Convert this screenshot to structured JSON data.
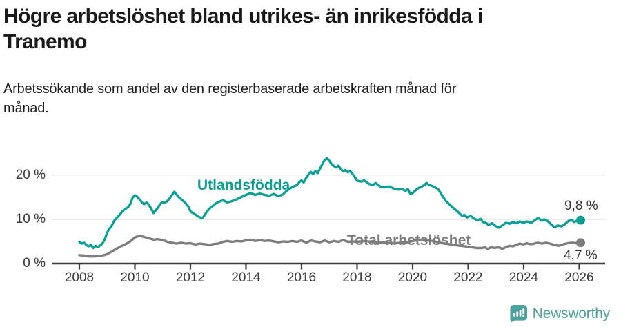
{
  "header": {
    "title_lines": [
      "Högre arbetslöshet bland utrikes- än inrikesfödda i",
      "Tranemo"
    ],
    "subtitle_lines": [
      "Arbetssökande som andel av den registerbaserade arbetskraften månad för",
      "månad."
    ]
  },
  "branding": {
    "name": "Newsworthy",
    "icon": "newsworthy-chart-bubble-icon",
    "color": "#4da19c"
  },
  "chart_data": {
    "type": "line",
    "title": "Högre arbetslöshet bland utrikes- än inrikesfödda i Tranemo",
    "subtitle": "Arbetssökande som andel av den registerbaserade arbetskraften månad för månad.",
    "unit": "%",
    "grid": true,
    "legend_position": "inline-labels",
    "x_axis": {
      "tick_values": [
        2008,
        2010,
        2012,
        2014,
        2016,
        2018,
        2020,
        2022,
        2024,
        2026
      ],
      "tick_labels": [
        "2008",
        "2010",
        "2012",
        "2014",
        "2016",
        "2018",
        "2020",
        "2022",
        "2024",
        "2026"
      ],
      "range": [
        2007.0,
        2026.95
      ]
    },
    "y_axis": {
      "tick_values": [
        0,
        10,
        20
      ],
      "tick_labels": [
        "0 %",
        "10 %",
        "20 %"
      ],
      "range": [
        0,
        26.5
      ]
    },
    "series": [
      {
        "name": "Utlandsfödda",
        "color": "#0ba095",
        "end_label": "9,8 %",
        "end_value": 9.8,
        "points": [
          [
            2008.0,
            4.9
          ],
          [
            2008.08,
            4.5
          ],
          [
            2008.17,
            4.7
          ],
          [
            2008.25,
            4.2
          ],
          [
            2008.33,
            3.9
          ],
          [
            2008.42,
            4.2
          ],
          [
            2008.5,
            3.5
          ],
          [
            2008.58,
            4.0
          ],
          [
            2008.67,
            3.7
          ],
          [
            2008.75,
            4.1
          ],
          [
            2008.83,
            4.5
          ],
          [
            2008.92,
            5.5
          ],
          [
            2009.0,
            7.0
          ],
          [
            2009.08,
            7.8
          ],
          [
            2009.17,
            8.6
          ],
          [
            2009.25,
            9.6
          ],
          [
            2009.33,
            10.2
          ],
          [
            2009.42,
            10.8
          ],
          [
            2009.5,
            11.4
          ],
          [
            2009.58,
            12.0
          ],
          [
            2009.67,
            12.4
          ],
          [
            2009.75,
            12.7
          ],
          [
            2009.83,
            13.4
          ],
          [
            2009.92,
            14.9
          ],
          [
            2010.0,
            15.4
          ],
          [
            2010.08,
            15.1
          ],
          [
            2010.17,
            14.5
          ],
          [
            2010.25,
            13.8
          ],
          [
            2010.33,
            13.4
          ],
          [
            2010.42,
            13.8
          ],
          [
            2010.5,
            13.3
          ],
          [
            2010.58,
            12.5
          ],
          [
            2010.67,
            11.4
          ],
          [
            2010.75,
            12.0
          ],
          [
            2010.83,
            12.6
          ],
          [
            2010.92,
            13.5
          ],
          [
            2011.0,
            13.9
          ],
          [
            2011.08,
            13.7
          ],
          [
            2011.17,
            14.1
          ],
          [
            2011.25,
            14.7
          ],
          [
            2011.33,
            15.4
          ],
          [
            2011.42,
            16.2
          ],
          [
            2011.5,
            15.6
          ],
          [
            2011.58,
            15.0
          ],
          [
            2011.67,
            14.5
          ],
          [
            2011.75,
            14.1
          ],
          [
            2011.83,
            13.6
          ],
          [
            2011.92,
            12.9
          ],
          [
            2012.0,
            11.8
          ],
          [
            2012.08,
            11.4
          ],
          [
            2012.17,
            11.1
          ],
          [
            2012.25,
            10.7
          ],
          [
            2012.42,
            10.2
          ],
          [
            2012.5,
            10.8
          ],
          [
            2012.58,
            11.6
          ],
          [
            2012.67,
            12.3
          ],
          [
            2012.75,
            12.8
          ],
          [
            2012.83,
            13.1
          ],
          [
            2012.92,
            13.6
          ],
          [
            2013.0,
            13.9
          ],
          [
            2013.17,
            14.3
          ],
          [
            2013.33,
            13.8
          ],
          [
            2013.5,
            14.1
          ],
          [
            2013.67,
            14.5
          ],
          [
            2013.83,
            15.0
          ],
          [
            2014.0,
            15.5
          ],
          [
            2014.17,
            15.9
          ],
          [
            2014.33,
            15.5
          ],
          [
            2014.5,
            15.8
          ],
          [
            2014.67,
            15.5
          ],
          [
            2014.83,
            15.3
          ],
          [
            2015.0,
            15.7
          ],
          [
            2015.17,
            15.2
          ],
          [
            2015.33,
            15.6
          ],
          [
            2015.5,
            16.6
          ],
          [
            2015.67,
            17.3
          ],
          [
            2015.83,
            17.7
          ],
          [
            2015.92,
            18.4
          ],
          [
            2016.0,
            18.8
          ],
          [
            2016.08,
            18.3
          ],
          [
            2016.17,
            19.4
          ],
          [
            2016.25,
            20.1
          ],
          [
            2016.33,
            20.7
          ],
          [
            2016.42,
            20.2
          ],
          [
            2016.5,
            20.9
          ],
          [
            2016.58,
            20.4
          ],
          [
            2016.67,
            21.5
          ],
          [
            2016.75,
            22.5
          ],
          [
            2016.83,
            23.3
          ],
          [
            2016.92,
            23.8
          ],
          [
            2017.0,
            23.2
          ],
          [
            2017.08,
            22.5
          ],
          [
            2017.17,
            22.0
          ],
          [
            2017.25,
            21.7
          ],
          [
            2017.33,
            22.1
          ],
          [
            2017.42,
            21.3
          ],
          [
            2017.5,
            20.8
          ],
          [
            2017.58,
            21.1
          ],
          [
            2017.67,
            20.6
          ],
          [
            2017.75,
            20.9
          ],
          [
            2017.83,
            20.3
          ],
          [
            2017.92,
            19.5
          ],
          [
            2018.0,
            18.7
          ],
          [
            2018.17,
            18.5
          ],
          [
            2018.25,
            18.8
          ],
          [
            2018.42,
            18.0
          ],
          [
            2018.58,
            17.7
          ],
          [
            2018.67,
            18.2
          ],
          [
            2018.83,
            17.4
          ],
          [
            2019.0,
            17.2
          ],
          [
            2019.17,
            17.4
          ],
          [
            2019.33,
            16.9
          ],
          [
            2019.5,
            16.7
          ],
          [
            2019.58,
            16.9
          ],
          [
            2019.75,
            16.4
          ],
          [
            2019.83,
            16.8
          ],
          [
            2019.92,
            15.7
          ],
          [
            2020.0,
            15.9
          ],
          [
            2020.17,
            16.9
          ],
          [
            2020.33,
            17.4
          ],
          [
            2020.42,
            17.7
          ],
          [
            2020.5,
            18.2
          ],
          [
            2020.58,
            17.8
          ],
          [
            2020.75,
            17.4
          ],
          [
            2020.92,
            16.8
          ],
          [
            2021.0,
            16.0
          ],
          [
            2021.1,
            15.0
          ],
          [
            2021.2,
            14.1
          ],
          [
            2021.42,
            12.8
          ],
          [
            2021.66,
            11.5
          ],
          [
            2021.79,
            10.7
          ],
          [
            2021.86,
            11.0
          ],
          [
            2021.96,
            10.4
          ],
          [
            2022.08,
            10.8
          ],
          [
            2022.2,
            10.2
          ],
          [
            2022.33,
            9.8
          ],
          [
            2022.45,
            10.1
          ],
          [
            2022.53,
            9.4
          ],
          [
            2022.66,
            9.1
          ],
          [
            2022.73,
            8.7
          ],
          [
            2022.86,
            9.1
          ],
          [
            2022.98,
            8.5
          ],
          [
            2023.11,
            8.1
          ],
          [
            2023.23,
            8.6
          ],
          [
            2023.36,
            9.2
          ],
          [
            2023.49,
            9.0
          ],
          [
            2023.61,
            9.4
          ],
          [
            2023.74,
            9.1
          ],
          [
            2023.86,
            9.5
          ],
          [
            2023.99,
            9.2
          ],
          [
            2024.11,
            9.5
          ],
          [
            2024.27,
            9.2
          ],
          [
            2024.4,
            9.8
          ],
          [
            2024.52,
            10.3
          ],
          [
            2024.65,
            9.7
          ],
          [
            2024.73,
            10.0
          ],
          [
            2024.86,
            9.6
          ],
          [
            2024.98,
            8.9
          ],
          [
            2025.11,
            8.2
          ],
          [
            2025.23,
            8.6
          ],
          [
            2025.36,
            8.4
          ],
          [
            2025.48,
            8.9
          ],
          [
            2025.61,
            9.6
          ],
          [
            2025.73,
            9.8
          ],
          [
            2025.81,
            9.4
          ],
          [
            2025.94,
            9.7
          ],
          [
            2026.05,
            9.8
          ]
        ]
      },
      {
        "name": "Total arbetslöshet",
        "color": "#7e7e7e",
        "end_label": "4,7 %",
        "end_value": 4.7,
        "points": [
          [
            2008.0,
            1.9
          ],
          [
            2008.17,
            1.8
          ],
          [
            2008.33,
            1.6
          ],
          [
            2008.5,
            1.6
          ],
          [
            2008.67,
            1.7
          ],
          [
            2008.83,
            1.8
          ],
          [
            2009.0,
            2.1
          ],
          [
            2009.17,
            2.7
          ],
          [
            2009.33,
            3.3
          ],
          [
            2009.5,
            3.9
          ],
          [
            2009.67,
            4.4
          ],
          [
            2009.83,
            5.0
          ],
          [
            2010.0,
            5.9
          ],
          [
            2010.17,
            6.3
          ],
          [
            2010.33,
            6.0
          ],
          [
            2010.5,
            5.7
          ],
          [
            2010.67,
            5.4
          ],
          [
            2010.83,
            5.5
          ],
          [
            2011.0,
            5.3
          ],
          [
            2011.17,
            4.9
          ],
          [
            2011.33,
            4.7
          ],
          [
            2011.5,
            4.5
          ],
          [
            2011.67,
            4.7
          ],
          [
            2011.83,
            4.5
          ],
          [
            2012.0,
            4.6
          ],
          [
            2012.17,
            4.3
          ],
          [
            2012.33,
            4.5
          ],
          [
            2012.5,
            4.4
          ],
          [
            2012.67,
            4.2
          ],
          [
            2012.83,
            4.4
          ],
          [
            2013.0,
            4.5
          ],
          [
            2013.17,
            4.9
          ],
          [
            2013.33,
            5.1
          ],
          [
            2013.5,
            4.9
          ],
          [
            2013.67,
            5.1
          ],
          [
            2013.83,
            5.0
          ],
          [
            2014.0,
            5.2
          ],
          [
            2014.17,
            5.4
          ],
          [
            2014.33,
            5.1
          ],
          [
            2014.5,
            5.3
          ],
          [
            2014.67,
            5.1
          ],
          [
            2014.83,
            5.2
          ],
          [
            2015.0,
            5.0
          ],
          [
            2015.17,
            4.8
          ],
          [
            2015.33,
            5.0
          ],
          [
            2015.5,
            4.9
          ],
          [
            2015.67,
            5.1
          ],
          [
            2015.83,
            4.9
          ],
          [
            2016.0,
            5.2
          ],
          [
            2016.17,
            4.7
          ],
          [
            2016.33,
            5.2
          ],
          [
            2016.5,
            5.0
          ],
          [
            2016.67,
            4.8
          ],
          [
            2016.83,
            5.2
          ],
          [
            2017.0,
            4.8
          ],
          [
            2017.17,
            5.1
          ],
          [
            2017.33,
            4.9
          ],
          [
            2017.5,
            5.3
          ],
          [
            2017.67,
            4.9
          ],
          [
            2017.83,
            5.0
          ],
          [
            2018.0,
            4.9
          ],
          [
            2018.3,
            5.1
          ],
          [
            2018.6,
            4.8
          ],
          [
            2019.0,
            4.7
          ],
          [
            2019.4,
            4.6
          ],
          [
            2019.8,
            4.8
          ],
          [
            2020.1,
            5.2
          ],
          [
            2020.4,
            5.4
          ],
          [
            2020.7,
            5.1
          ],
          [
            2021.0,
            4.7
          ],
          [
            2021.3,
            4.4
          ],
          [
            2021.6,
            4.1
          ],
          [
            2021.9,
            3.9
          ],
          [
            2022.1,
            3.7
          ],
          [
            2022.3,
            3.5
          ],
          [
            2022.5,
            3.5
          ],
          [
            2022.6,
            3.7
          ],
          [
            2022.7,
            3.3
          ],
          [
            2022.83,
            3.7
          ],
          [
            2022.95,
            3.5
          ],
          [
            2023.1,
            3.7
          ],
          [
            2023.23,
            3.3
          ],
          [
            2023.36,
            3.7
          ],
          [
            2023.49,
            4.0
          ],
          [
            2023.61,
            3.9
          ],
          [
            2023.74,
            4.2
          ],
          [
            2023.86,
            4.5
          ],
          [
            2023.99,
            4.3
          ],
          [
            2024.11,
            4.6
          ],
          [
            2024.2,
            4.4
          ],
          [
            2024.33,
            4.4
          ],
          [
            2024.5,
            4.7
          ],
          [
            2024.65,
            4.5
          ],
          [
            2024.8,
            4.7
          ],
          [
            2024.95,
            4.5
          ],
          [
            2025.1,
            4.2
          ],
          [
            2025.27,
            4.0
          ],
          [
            2025.45,
            4.4
          ],
          [
            2025.6,
            4.6
          ],
          [
            2025.75,
            4.7
          ],
          [
            2025.88,
            4.6
          ],
          [
            2026.05,
            4.7
          ]
        ]
      }
    ]
  }
}
